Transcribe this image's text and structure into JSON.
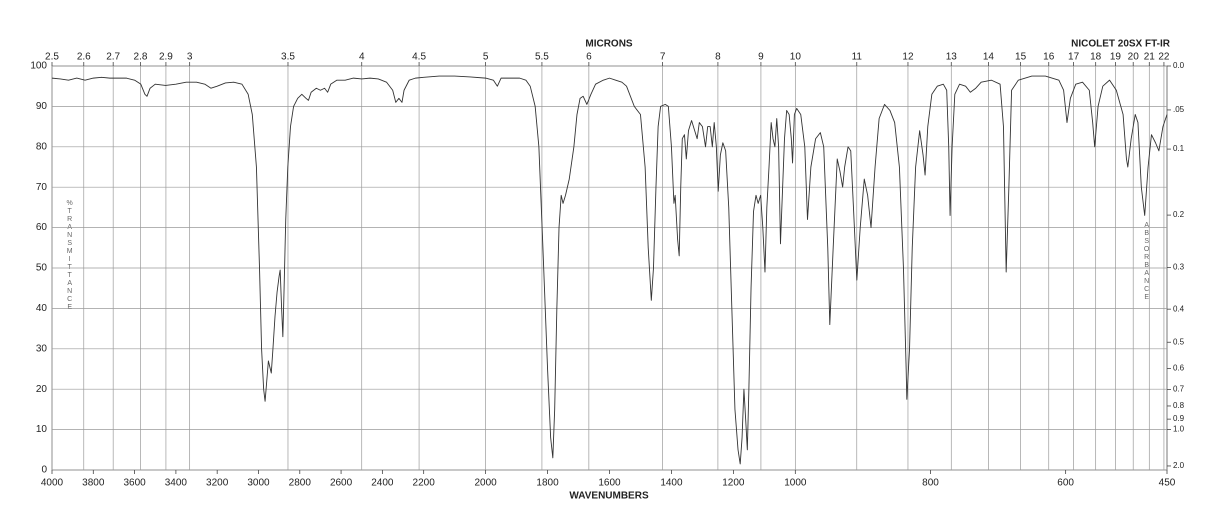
{
  "chart_data": {
    "type": "line",
    "title": "NICOLET 20SX FT-IR",
    "x_label": "WAVENUMBERS",
    "x2_label": "MICRONS",
    "y_label": "%TRANSMITTANCE",
    "y2_label": "ABSORBANCE",
    "color": "#333333",
    "grid": true,
    "xlim": [
      4000,
      450
    ],
    "x_scale_breaks": [
      2200,
      1000
    ],
    "xticks": [
      4000,
      3800,
      3600,
      3400,
      3200,
      3000,
      2800,
      2600,
      2400,
      2200,
      2000,
      1800,
      1600,
      1400,
      1200,
      1000,
      800,
      600,
      450
    ],
    "x2ticks": [
      2.5,
      2.6,
      2.7,
      2.8,
      2.9,
      3,
      3.5,
      4,
      4.5,
      5,
      5.5,
      6,
      7,
      8,
      9,
      10,
      11,
      12,
      13,
      14,
      15,
      16,
      17,
      18,
      19,
      20,
      21,
      22
    ],
    "ylim": [
      0,
      100
    ],
    "yticks": [
      0,
      10,
      20,
      30,
      40,
      50,
      60,
      70,
      80,
      90,
      100
    ],
    "y2scale": "absorbance",
    "y2ticks": [
      {
        "value": 0,
        "label": "0.0"
      },
      {
        "value": 0.05,
        "label": ".05"
      },
      0.1,
      0.2,
      0.3,
      0.4,
      0.5,
      0.6,
      0.7,
      0.8,
      0.9,
      {
        "value": 1,
        "label": "1.0"
      },
      {
        "value": 2,
        "label": "2.0"
      }
    ],
    "x": [
      4000,
      3960,
      3920,
      3880,
      3840,
      3800,
      3760,
      3720,
      3680,
      3640,
      3600,
      3570,
      3550,
      3540,
      3525,
      3500,
      3450,
      3400,
      3350,
      3300,
      3260,
      3230,
      3200,
      3160,
      3120,
      3080,
      3050,
      3030,
      3010,
      2995,
      2985,
      2975,
      2968,
      2960,
      2952,
      2945,
      2938,
      2930,
      2920,
      2910,
      2900,
      2895,
      2888,
      2882,
      2876,
      2868,
      2858,
      2845,
      2830,
      2810,
      2790,
      2770,
      2758,
      2745,
      2720,
      2700,
      2680,
      2665,
      2650,
      2620,
      2580,
      2540,
      2500,
      2460,
      2420,
      2380,
      2350,
      2335,
      2320,
      2305,
      2295,
      2270,
      2240,
      2200,
      2150,
      2100,
      2050,
      2000,
      1975,
      1962,
      1950,
      1920,
      1890,
      1870,
      1856,
      1840,
      1828,
      1815,
      1800,
      1790,
      1783,
      1777,
      1770,
      1763,
      1756,
      1750,
      1742,
      1730,
      1715,
      1705,
      1695,
      1685,
      1673,
      1660,
      1645,
      1620,
      1600,
      1580,
      1560,
      1545,
      1520,
      1500,
      1485,
      1475,
      1465,
      1458,
      1450,
      1443,
      1435,
      1420,
      1410,
      1400,
      1392,
      1388,
      1380,
      1375,
      1370,
      1365,
      1358,
      1352,
      1345,
      1335,
      1325,
      1317,
      1310,
      1300,
      1290,
      1283,
      1275,
      1268,
      1262,
      1255,
      1249,
      1242,
      1234,
      1225,
      1215,
      1205,
      1195,
      1185,
      1178,
      1172,
      1166,
      1160,
      1155,
      1150,
      1143,
      1135,
      1127,
      1120,
      1112,
      1105,
      1098,
      1092,
      1085,
      1078,
      1072,
      1066,
      1060,
      1054,
      1048,
      1042,
      1035,
      1028,
      1020,
      1013,
      1009,
      1003,
      998,
      992,
      986,
      982,
      977,
      970,
      963,
      958,
      952,
      949,
      944,
      938,
      934,
      930,
      927,
      922,
      918,
      914,
      909,
      904,
      898,
      893,
      888,
      882,
      876,
      868,
      860,
      853,
      846,
      840,
      836,
      835,
      831,
      827,
      822,
      816,
      811,
      808,
      804,
      798,
      790,
      781,
      776,
      773,
      771,
      768,
      764,
      757,
      748,
      741,
      733,
      725,
      710,
      697,
      692,
      688,
      684,
      680,
      670,
      650,
      630,
      610,
      603,
      598,
      593,
      585,
      575,
      565,
      560,
      557,
      552,
      545,
      535,
      525,
      515,
      510,
      508,
      503,
      497,
      493,
      488,
      483,
      478,
      473,
      467,
      462,
      456,
      450
    ],
    "values": [
      97,
      96.8,
      96.5,
      97,
      96.5,
      97,
      97.2,
      97,
      97,
      97,
      96.5,
      95.5,
      93,
      92.5,
      94.5,
      95.5,
      95.2,
      95.5,
      96,
      96,
      95.5,
      94.5,
      95,
      95.8,
      96,
      95.5,
      93,
      88,
      75,
      50,
      30,
      20,
      17,
      22,
      27,
      25.5,
      24,
      30,
      38,
      44,
      48,
      49.5,
      40,
      33,
      45,
      62,
      75,
      85,
      90,
      92,
      93,
      92,
      91.5,
      93.5,
      94.5,
      94,
      94.5,
      93.5,
      95.5,
      96.5,
      96.5,
      97,
      96.8,
      97,
      96.8,
      96,
      94,
      91,
      92,
      91,
      94,
      96.5,
      97,
      97.2,
      97.5,
      97.5,
      97.3,
      97,
      96.5,
      95,
      97,
      97,
      97,
      96.5,
      95,
      90,
      80,
      55,
      25,
      8,
      3,
      15,
      40,
      60,
      68,
      66,
      68,
      72,
      80,
      88,
      92,
      92.5,
      90.5,
      93,
      95.5,
      96.5,
      97,
      96.5,
      96,
      95,
      90,
      88,
      75,
      55,
      42,
      50,
      70,
      85,
      90,
      90.5,
      90,
      80,
      66,
      68,
      57,
      53,
      70,
      82,
      83,
      77,
      84,
      86.5,
      84,
      82,
      86,
      85,
      80,
      85,
      85,
      80,
      86,
      80,
      69,
      78,
      81,
      79,
      65,
      40,
      15,
      5,
      1.5,
      8,
      20,
      12,
      5,
      20,
      45,
      64,
      68,
      66,
      68,
      60,
      49,
      65,
      75,
      86,
      82,
      80,
      87,
      80,
      56,
      68,
      82,
      89,
      88,
      82,
      76,
      88,
      89.5,
      88,
      80,
      62,
      75,
      82,
      83.5,
      80,
      55,
      36,
      55,
      77,
      74,
      70,
      75,
      80,
      79,
      65,
      47,
      60,
      72,
      68,
      60,
      75,
      87,
      90.5,
      89,
      86,
      75,
      50,
      25,
      17.5,
      30,
      55,
      75,
      84,
      78,
      73,
      85,
      93,
      95,
      95.5,
      94,
      80,
      63,
      80,
      93,
      95.5,
      95,
      93.5,
      94.5,
      96,
      96.5,
      95.5,
      85,
      49,
      70,
      94,
      96.5,
      97.5,
      97.5,
      96.5,
      94,
      86,
      92,
      95.5,
      96,
      94,
      86,
      80,
      90,
      95,
      96.5,
      94,
      88,
      77,
      75,
      82,
      88,
      86,
      70,
      63,
      75,
      83,
      81,
      79,
      85,
      88
    ]
  }
}
